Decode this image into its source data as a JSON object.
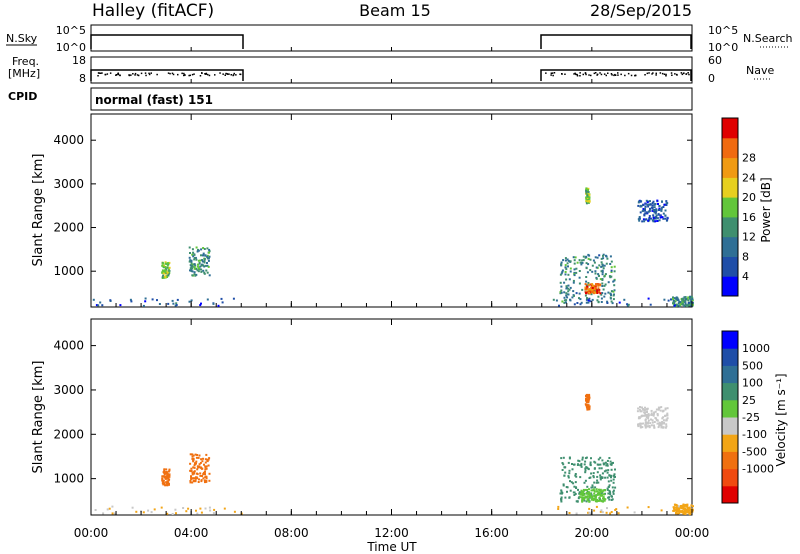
{
  "header": {
    "left": "Halley (fitACF)",
    "center": "Beam 15",
    "right": "28/Sep/2015"
  },
  "colors": {
    "power_scale": [
      "#0000ff",
      "#1f4ea8",
      "#2f6f95",
      "#3f8f6f",
      "#62c63a",
      "#e6cf1f",
      "#f09a12",
      "#f06a10",
      "#e00000"
    ],
    "velocity_scale": [
      "#e00000",
      "#f04a10",
      "#f07010",
      "#f2a516",
      "#c8c8c8",
      "#62c63a",
      "#3f8f6f",
      "#2f6f95",
      "#1f4ea8",
      "#0000ff"
    ]
  },
  "labels": {
    "nsky": "N.Sky",
    "nsearch": "N.Search",
    "freq_line1": "Freq.",
    "freq_line2": "[MHz]",
    "nave": "Nave",
    "cpid": "CPID",
    "cpid_value": "normal (fast) 151",
    "nsky_tick_top": "10^5",
    "nsky_tick_bottom": "10^0",
    "nsearch_tick_top": "10^5",
    "nsearch_tick_bottom": "10^0",
    "freq_tick_top": "18",
    "freq_tick_bottom": "8",
    "nave_tick_top": "60",
    "nave_tick_bottom": "0"
  },
  "chart_data": [
    {
      "type": "heatmap",
      "name": "power",
      "xlabel": "",
      "ylabel": "Slant Range [km]",
      "x_range_hours": [
        0,
        24
      ],
      "ylim": [
        180,
        4600
      ],
      "yticks": [
        "1000",
        "2000",
        "3000",
        "4000"
      ],
      "colorbar_label": "Power [dB]",
      "colorbar_ticks": [
        "4",
        "8",
        "12",
        "16",
        "20",
        "24",
        "28"
      ],
      "clim": [
        0,
        32
      ],
      "blobs": [
        {
          "t": 2.95,
          "r": 1050,
          "dt": 0.15,
          "dr": 190,
          "v": 16
        },
        {
          "t": 4.3,
          "r": 1250,
          "dt": 0.4,
          "dr": 330,
          "v": 12
        },
        {
          "t": 19.8,
          "r": 850,
          "dt": 1.1,
          "dr": 560,
          "v": 11
        },
        {
          "t": 20.0,
          "r": 620,
          "dt": 0.3,
          "dr": 110,
          "v": 27
        },
        {
          "t": 23.7,
          "r": 330,
          "dt": 0.5,
          "dr": 110,
          "v": 12
        },
        {
          "t": 22.4,
          "r": 2400,
          "dt": 0.6,
          "dr": 240,
          "v": 6
        },
        {
          "t": 19.8,
          "r": 2750,
          "dt": 0.08,
          "dr": 180,
          "v": 16
        }
      ]
    },
    {
      "type": "heatmap",
      "name": "velocity",
      "xlabel": "Time UT",
      "ylabel": "Slant Range [km]",
      "x_range_hours": [
        0,
        24
      ],
      "ylim": [
        180,
        4600
      ],
      "xticks": [
        "00:00",
        "04:00",
        "08:00",
        "12:00",
        "16:00",
        "20:00",
        "00:00"
      ],
      "yticks": [
        "1000",
        "2000",
        "3000",
        "4000"
      ],
      "colorbar_label": "Velocity [m s⁻¹]",
      "colorbar_ticks": [
        "1000",
        "500",
        "100",
        "25",
        "-25",
        "-100",
        "-500",
        "-1000"
      ],
      "blobs": [
        {
          "t": 2.95,
          "r": 1050,
          "dt": 0.15,
          "dr": 190,
          "v": -300
        },
        {
          "t": 4.3,
          "r": 1250,
          "dt": 0.4,
          "dr": 330,
          "v": -300
        },
        {
          "t": 19.8,
          "r": 1000,
          "dt": 1.1,
          "dr": 500,
          "v": 200
        },
        {
          "t": 20.0,
          "r": 650,
          "dt": 0.5,
          "dr": 150,
          "v": 60
        },
        {
          "t": 23.7,
          "r": 330,
          "dt": 0.5,
          "dr": 110,
          "v": -60
        },
        {
          "t": 22.4,
          "r": 2400,
          "dt": 0.6,
          "dr": 240,
          "v": 0
        },
        {
          "t": 19.8,
          "r": 2750,
          "dt": 0.08,
          "dr": 180,
          "v": -300
        }
      ]
    }
  ]
}
